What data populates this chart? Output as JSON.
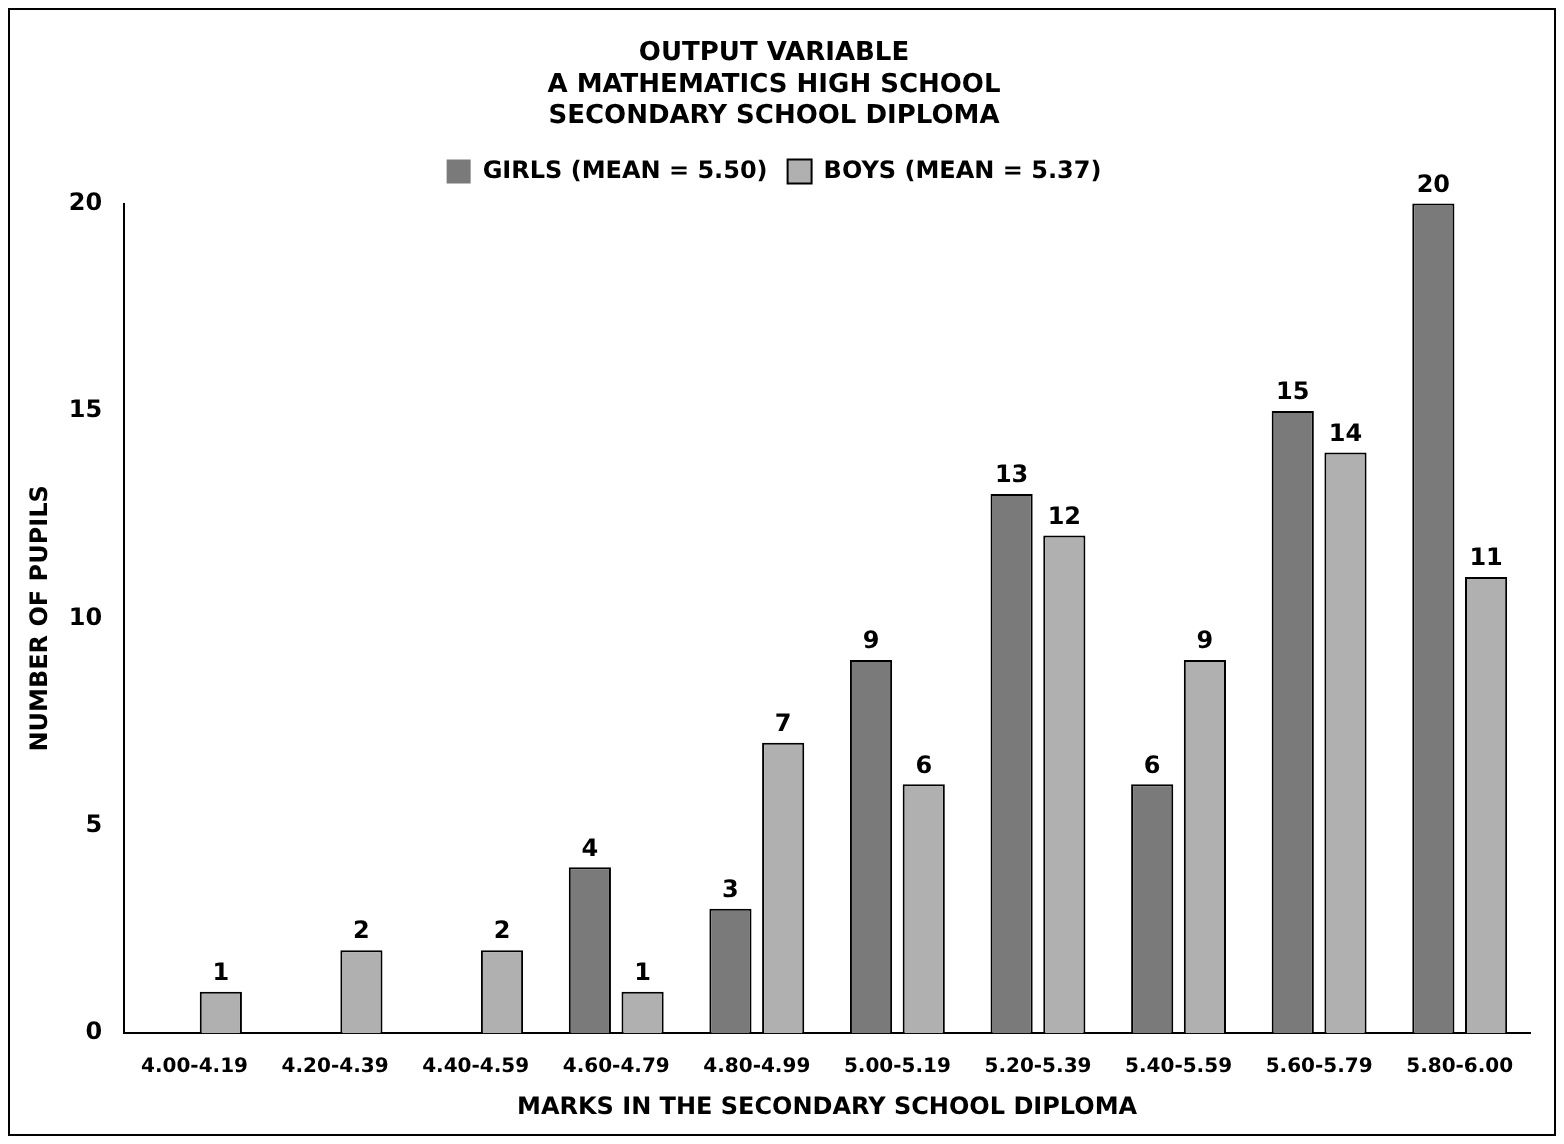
{
  "chart_data": {
    "type": "bar",
    "title": "OUTPUT VARIABLE\nA MATHEMATICS HIGH SCHOOL\nSECONDARY SCHOOL DIPLOMA",
    "xlabel": "MARKS IN THE SECONDARY SCHOOL DIPLOMA",
    "ylabel": "NUMBER OF PUPILS",
    "categories": [
      "4.00-4.19",
      "4.20-4.39",
      "4.40-4.59",
      "4.60-4.79",
      "4.80-4.99",
      "5.00-5.19",
      "5.20-5.39",
      "5.40-5.59",
      "5.60-5.79",
      "5.80-6.00"
    ],
    "series": [
      {
        "name": "GIRLS (MEAN = 5.50)",
        "color": "#7a7a7a",
        "values": [
          0,
          0,
          0,
          4,
          3,
          9,
          13,
          6,
          15,
          20
        ],
        "value_labels": [
          null,
          null,
          null,
          "4",
          "3",
          "9",
          "13",
          "6",
          "15",
          "20"
        ]
      },
      {
        "name": "BOYS (MEAN = 5.37)",
        "color": "#b0b0b0",
        "values": [
          1,
          2,
          2,
          1,
          7,
          6,
          12,
          9,
          14,
          11
        ],
        "value_labels": [
          "1",
          "2",
          "2",
          "1",
          "7",
          "6",
          "12",
          "9",
          "14",
          "11"
        ]
      }
    ],
    "ylim": [
      0,
      20
    ],
    "yticks": [
      0,
      5,
      10,
      15,
      20
    ],
    "grid": false,
    "legend": "top"
  }
}
